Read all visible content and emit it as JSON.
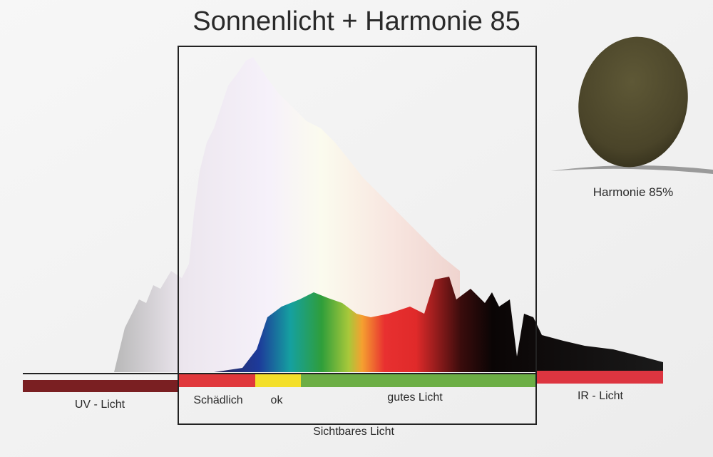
{
  "title": "Sonnenlicht + Harmonie 85",
  "lens": {
    "label": "Harmonie 85%"
  },
  "bands": {
    "uv": "UV - Licht",
    "harmful": "Schädlich",
    "ok": "ok",
    "good": "gutes Licht",
    "ir": "IR - Licht"
  },
  "visible": "Sichtbares Licht"
}
